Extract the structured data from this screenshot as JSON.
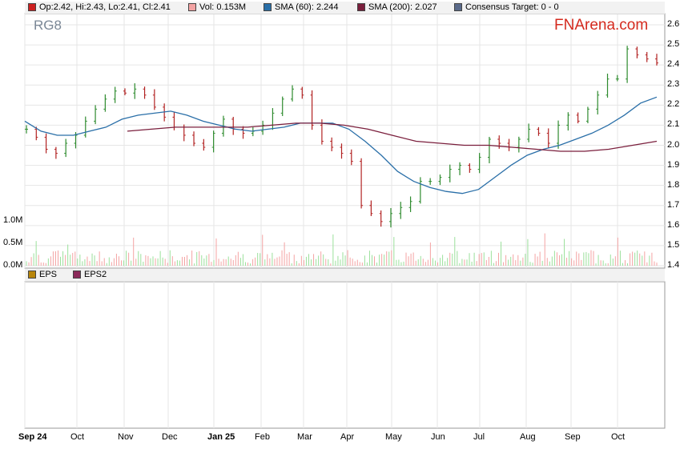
{
  "header": {
    "ticker": "RG8",
    "brand": "FNArena.com",
    "legend": [
      {
        "label": "Op:2.42, Hi:2.43, Lo:2.41, Cl:2.41",
        "color": "#cc1f1f"
      },
      {
        "label": "Vol: 0.153M",
        "color": "#f3a3a3"
      },
      {
        "label": "SMA (60): 2.244",
        "color": "#2a6fa8"
      },
      {
        "label": "SMA (200): 2.027",
        "color": "#7a1e3c"
      },
      {
        "label": "Consensus Target: 0 - 0",
        "color": "#5a6a8a"
      }
    ]
  },
  "lower_panel": {
    "legend": [
      {
        "label": "EPS",
        "color": "#b8860b"
      },
      {
        "label": "EPS2",
        "color": "#8b2a5a"
      }
    ]
  },
  "chart_data": {
    "type": "line",
    "title": "RG8",
    "price_axis": {
      "ticks": [
        "1.4",
        "1.5",
        "1.6",
        "1.7",
        "1.8",
        "1.9",
        "2.0",
        "2.1",
        "2.2",
        "2.3",
        "2.4",
        "2.5",
        "2.6"
      ],
      "range": [
        1.4,
        2.6
      ]
    },
    "volume_axis": {
      "ticks": [
        "0.0M",
        "0.5M",
        "1.0M"
      ],
      "range": [
        0,
        1.0
      ]
    },
    "x_labels": [
      {
        "label": "Sep 24",
        "bold": true
      },
      {
        "label": "Oct",
        "bold": false
      },
      {
        "label": "Nov",
        "bold": false
      },
      {
        "label": "Dec",
        "bold": false
      },
      {
        "label": "Jan 25",
        "bold": true
      },
      {
        "label": "Feb",
        "bold": false
      },
      {
        "label": "Mar",
        "bold": false
      },
      {
        "label": "Apr",
        "bold": false
      },
      {
        "label": "May",
        "bold": false
      },
      {
        "label": "Jun",
        "bold": false
      },
      {
        "label": "Jul",
        "bold": false
      },
      {
        "label": "Aug",
        "bold": false
      },
      {
        "label": "Sep",
        "bold": false
      },
      {
        "label": "Oct",
        "bold": false
      }
    ],
    "series": [
      {
        "name": "Close",
        "color": "#2e7d2e",
        "values": [
          2.08,
          2.04,
          1.98,
          1.96,
          2.01,
          2.05,
          2.12,
          2.18,
          2.23,
          2.27,
          2.26,
          2.28,
          2.25,
          2.19,
          2.14,
          2.09,
          2.05,
          2.01,
          1.99,
          2.06,
          2.13,
          2.08,
          2.06,
          2.07,
          2.1,
          2.16,
          2.23,
          2.28,
          2.25,
          2.1,
          2.02,
          1.99,
          1.96,
          1.92,
          1.7,
          1.66,
          1.62,
          1.66,
          1.69,
          1.72,
          1.82,
          1.82,
          1.84,
          1.88,
          1.9,
          1.88,
          1.94,
          2.03,
          2.01,
          1.99,
          2.03,
          2.08,
          2.06,
          2.01,
          2.1,
          2.15,
          2.12,
          2.18,
          2.25,
          2.33,
          2.33,
          2.48,
          2.45,
          2.43,
          2.41
        ]
      },
      {
        "name": "SMA (60)",
        "color": "#2a6fa8",
        "values": [
          2.12,
          2.07,
          2.05,
          2.05,
          2.07,
          2.09,
          2.13,
          2.15,
          2.16,
          2.17,
          2.15,
          2.12,
          2.1,
          2.08,
          2.07,
          2.08,
          2.09,
          2.11,
          2.11,
          2.11,
          2.08,
          2.02,
          1.95,
          1.87,
          1.82,
          1.79,
          1.77,
          1.76,
          1.78,
          1.84,
          1.9,
          1.95,
          1.98,
          2.0,
          2.03,
          2.06,
          2.1,
          2.15,
          2.21,
          2.24
        ]
      },
      {
        "name": "SMA (200)",
        "color": "#7a1e3c",
        "values": [
          2.07,
          2.08,
          2.09,
          2.09,
          2.09,
          2.09,
          2.1,
          2.11,
          2.11,
          2.1,
          2.08,
          2.05,
          2.02,
          2.01,
          2.0,
          2.0,
          1.99,
          1.98,
          1.97,
          1.97,
          1.98,
          2.0,
          2.02
        ]
      }
    ]
  }
}
